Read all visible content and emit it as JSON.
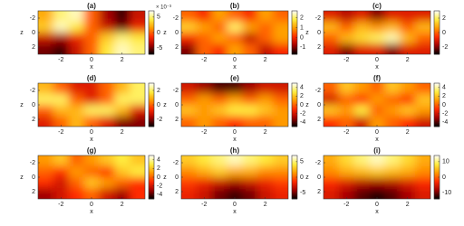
{
  "chart_data": [
    {
      "type": "heatmap",
      "title": "(a)",
      "xlabel": "x",
      "ylabel": "z",
      "xlim": [
        -3.5,
        3.5
      ],
      "ylim": [
        3,
        -3
      ],
      "xticks": [
        -2,
        0,
        2
      ],
      "yticks": [
        -2,
        0,
        2
      ],
      "x": [
        -3,
        -2,
        -1,
        0,
        1,
        2,
        3
      ],
      "y": [
        -2.25,
        -0.75,
        0.75,
        2.25
      ],
      "clim": [
        -7,
        7
      ],
      "cticks": [
        5,
        0,
        -5
      ],
      "scale_label": "× 10⁻³",
      "colormap": [
        "#000000",
        "#a00000",
        "#ff2a00",
        "#ff9a00",
        "#ffee40",
        "#ffffff"
      ],
      "values": [
        [
          2,
          5,
          6,
          0,
          -4,
          -6,
          -3
        ],
        [
          3,
          6,
          4,
          0,
          -3,
          -5,
          -2
        ],
        [
          -3,
          -4,
          -2,
          0,
          3,
          5,
          4
        ],
        [
          -5,
          -6,
          -3,
          0,
          4,
          6,
          5
        ]
      ]
    },
    {
      "type": "heatmap",
      "title": "(b)",
      "xlabel": "x",
      "ylabel": "z",
      "xlim": [
        -3.5,
        3.5
      ],
      "ylim": [
        3,
        -3
      ],
      "xticks": [
        -2,
        0,
        2
      ],
      "yticks": [
        -2,
        0,
        2
      ],
      "x": [
        -3,
        -2,
        -1,
        0,
        1,
        2,
        3
      ],
      "y": [
        -2.25,
        -0.75,
        0.75,
        2.25
      ],
      "clim": [
        -1.7,
        2.7
      ],
      "cticks": [
        2,
        1,
        0,
        -1
      ],
      "colormap": [
        "#000000",
        "#a00000",
        "#ff2a00",
        "#ff9a00",
        "#ffee40",
        "#ffffff"
      ],
      "values": [
        [
          0.5,
          0,
          1,
          0.5,
          0,
          1,
          0.5
        ],
        [
          1.5,
          1,
          0.5,
          2,
          1,
          0.5,
          1
        ],
        [
          0,
          0.5,
          1,
          0.5,
          -0.5,
          0.5,
          1
        ],
        [
          -1,
          0.5,
          0,
          1,
          0.5,
          -0.5,
          0
        ]
      ]
    },
    {
      "type": "heatmap",
      "title": "(c)",
      "xlabel": "x",
      "ylabel": "z",
      "xlim": [
        -3.5,
        3.5
      ],
      "ylim": [
        3,
        -3
      ],
      "xticks": [
        -2,
        0,
        2
      ],
      "yticks": [
        -2,
        0,
        2
      ],
      "x": [
        -3,
        -2,
        -1,
        0,
        1,
        2,
        3
      ],
      "y": [
        -2.25,
        -0.75,
        0.75,
        2.25
      ],
      "clim": [
        -3,
        3
      ],
      "cticks": [
        2,
        0,
        -2
      ],
      "colormap": [
        "#000000",
        "#a00000",
        "#ff2a00",
        "#ff9a00",
        "#ffee40",
        "#ffffff"
      ],
      "values": [
        [
          -1,
          -1.5,
          -1,
          -2,
          -1,
          -1,
          -1
        ],
        [
          1,
          0,
          1,
          0.5,
          1,
          0,
          1
        ],
        [
          0,
          1,
          1.5,
          2,
          2.5,
          1,
          0
        ],
        [
          -1,
          -2,
          -1,
          -1,
          -2,
          -1,
          -1
        ]
      ]
    },
    {
      "type": "heatmap",
      "title": "(d)",
      "xlabel": "x",
      "ylabel": "z",
      "xlim": [
        -3.5,
        3.5
      ],
      "ylim": [
        3,
        -3
      ],
      "xticks": [
        -2,
        0,
        2
      ],
      "yticks": [
        -2,
        0,
        2
      ],
      "x": [
        -3,
        -2,
        -1,
        0,
        1,
        2,
        3
      ],
      "y": [
        -2.25,
        -0.75,
        0.75,
        2.25
      ],
      "clim": [
        -3,
        3
      ],
      "cticks": [
        2,
        0,
        -2
      ],
      "colormap": [
        "#000000",
        "#a00000",
        "#ff2a00",
        "#ff9a00",
        "#ffee40",
        "#ffffff"
      ],
      "values": [
        [
          1,
          0,
          -1,
          -1,
          0,
          1,
          2
        ],
        [
          2,
          2,
          0,
          -1,
          0,
          2,
          2
        ],
        [
          0,
          1,
          1,
          2,
          2,
          1,
          -1
        ],
        [
          -1,
          0,
          1,
          0,
          -1,
          -2,
          -2
        ]
      ]
    },
    {
      "type": "heatmap",
      "title": "(e)",
      "xlabel": "x",
      "ylabel": "z",
      "xlim": [
        -3.5,
        3.5
      ],
      "ylim": [
        3,
        -3
      ],
      "xticks": [
        -2,
        0,
        2
      ],
      "yticks": [
        -2,
        0,
        2
      ],
      "x": [
        -3,
        -2,
        -1,
        0,
        1,
        2,
        3
      ],
      "y": [
        -2.25,
        -0.75,
        0.75,
        2.25
      ],
      "clim": [
        -5,
        5
      ],
      "cticks": [
        4,
        2,
        0,
        -2,
        -4
      ],
      "colormap": [
        "#000000",
        "#a00000",
        "#ff2a00",
        "#ff9a00",
        "#ffee40",
        "#ffffff"
      ],
      "values": [
        [
          -2,
          -3,
          -4,
          -4,
          -3,
          -2,
          -2
        ],
        [
          0,
          1,
          0,
          1,
          0,
          1,
          0
        ],
        [
          2,
          1,
          2,
          3,
          3,
          2,
          1
        ],
        [
          0,
          1,
          0,
          -1,
          0,
          0,
          1
        ]
      ]
    },
    {
      "type": "heatmap",
      "title": "(f)",
      "xlabel": "x",
      "ylabel": "z",
      "xlim": [
        -3.5,
        3.5
      ],
      "ylim": [
        3,
        -3
      ],
      "xticks": [
        -2,
        0,
        2
      ],
      "yticks": [
        -2,
        0,
        2
      ],
      "x": [
        -3,
        -2,
        -1,
        0,
        1,
        2,
        3
      ],
      "y": [
        -2.25,
        -0.75,
        0.75,
        2.25
      ],
      "clim": [
        -5,
        5
      ],
      "cticks": [
        4,
        2,
        0,
        -2,
        -4
      ],
      "colormap": [
        "#000000",
        "#a00000",
        "#ff2a00",
        "#ff9a00",
        "#ffee40",
        "#ffffff"
      ],
      "values": [
        [
          0,
          2,
          1,
          0,
          2,
          1,
          0
        ],
        [
          -2,
          0,
          -1,
          1,
          0,
          -1,
          2
        ],
        [
          2,
          1,
          3,
          0,
          1,
          2,
          1
        ],
        [
          -1,
          0,
          -2,
          1,
          0,
          -1,
          -2
        ]
      ]
    },
    {
      "type": "heatmap",
      "title": "(g)",
      "xlabel": "x",
      "ylabel": "z",
      "xlim": [
        -3.5,
        3.5
      ],
      "ylim": [
        3,
        -3
      ],
      "xticks": [
        -2,
        0,
        2
      ],
      "yticks": [
        -2,
        0,
        2
      ],
      "x": [
        -3,
        -2,
        -1,
        0,
        1,
        2,
        3
      ],
      "y": [
        -2.25,
        -0.75,
        0.75,
        2.25
      ],
      "clim": [
        -5,
        5
      ],
      "cticks": [
        4,
        2,
        0,
        -2,
        -4
      ],
      "colormap": [
        "#000000",
        "#a00000",
        "#ff2a00",
        "#ff9a00",
        "#ffee40",
        "#ffffff"
      ],
      "values": [
        [
          1,
          2,
          0,
          1,
          2,
          3,
          2
        ],
        [
          0,
          -1,
          1,
          0,
          -1,
          2,
          3
        ],
        [
          -1,
          -2,
          0,
          2,
          1,
          0,
          -1
        ],
        [
          -3,
          -2,
          -1,
          0,
          -2,
          -3,
          -1
        ]
      ]
    },
    {
      "type": "heatmap",
      "title": "(h)",
      "xlabel": "x",
      "ylabel": "z",
      "xlim": [
        -3.5,
        3.5
      ],
      "ylim": [
        3,
        -3
      ],
      "xticks": [
        -2,
        0,
        2
      ],
      "yticks": [
        -2,
        0,
        2
      ],
      "x": [
        -3,
        -2,
        -1,
        0,
        1,
        2,
        3
      ],
      "y": [
        -2.25,
        -0.75,
        0.75,
        2.25
      ],
      "clim": [
        -7,
        7
      ],
      "cticks": [
        5,
        0,
        -5
      ],
      "colormap": [
        "#000000",
        "#a00000",
        "#ff2a00",
        "#ff9a00",
        "#ffee40",
        "#ffffff"
      ],
      "values": [
        [
          3,
          4,
          5,
          6,
          5,
          4,
          3
        ],
        [
          1,
          2,
          3,
          2,
          2,
          1,
          1
        ],
        [
          -1,
          -2,
          -3,
          -4,
          -3,
          -2,
          -1
        ],
        [
          -2,
          -3,
          -5,
          -6,
          -5,
          -3,
          -2
        ]
      ]
    },
    {
      "type": "heatmap",
      "title": "(i)",
      "xlabel": "x",
      "ylabel": "z",
      "xlim": [
        -3.5,
        3.5
      ],
      "ylim": [
        3,
        -3
      ],
      "xticks": [
        -2,
        0,
        2
      ],
      "yticks": [
        -2,
        0,
        2
      ],
      "x": [
        -3,
        -2,
        -1,
        0,
        1,
        2,
        3
      ],
      "y": [
        -2.25,
        -0.75,
        0.75,
        2.25
      ],
      "clim": [
        -14,
        14
      ],
      "cticks": [
        10,
        0,
        -10
      ],
      "colormap": [
        "#000000",
        "#a00000",
        "#ff2a00",
        "#ff9a00",
        "#ffee40",
        "#ffffff"
      ],
      "values": [
        [
          4,
          7,
          10,
          12,
          10,
          7,
          4
        ],
        [
          2,
          4,
          5,
          6,
          5,
          4,
          2
        ],
        [
          -3,
          -5,
          -7,
          -8,
          -7,
          -5,
          -3
        ],
        [
          -5,
          -8,
          -11,
          -13,
          -11,
          -8,
          -5
        ]
      ]
    }
  ]
}
